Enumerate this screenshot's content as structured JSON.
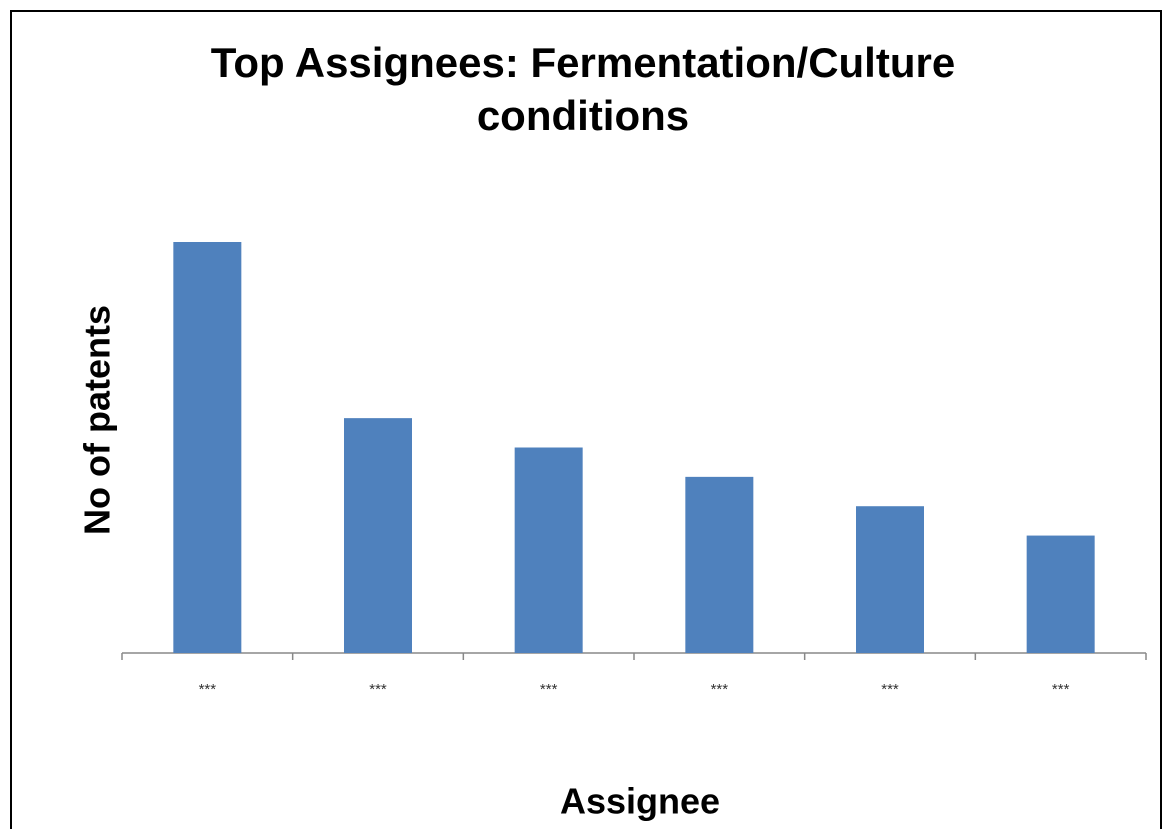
{
  "chart_data": {
    "type": "bar",
    "title": "Top Assignees: Fermentation/Culture conditions",
    "x_label": "Assignee",
    "y_label": "No of patents",
    "categories": [
      "***",
      "***",
      "***",
      "***",
      "***",
      "***"
    ],
    "values": [
      14,
      8,
      7,
      6,
      5,
      4
    ],
    "color": "#4f81bd"
  }
}
